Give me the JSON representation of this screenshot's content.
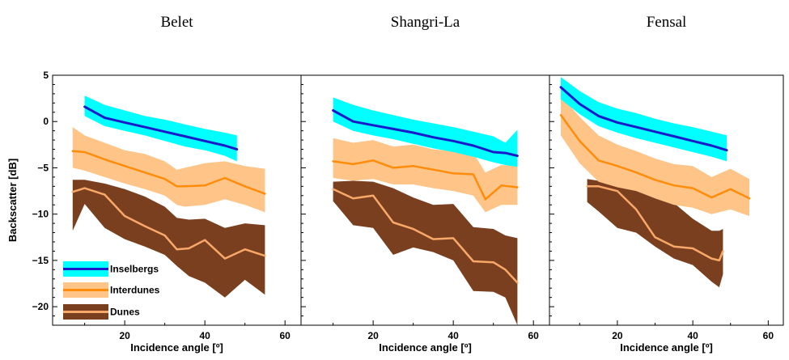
{
  "figure": {
    "ylabel": "Backscatter [dB]",
    "xlabel": "Incidence angle [º]",
    "legend": [
      "Inselbergs",
      "Interdunes",
      "Dunes"
    ],
    "colors": {
      "inselberg_band": "#00ffff",
      "inselberg_line": "#1a1acd",
      "interdune_band": "#ffc488",
      "interdune_line": "#ff8c0a",
      "dune_band": "#7a3f1f",
      "dune_line": "#f8a868"
    }
  },
  "chart_data": [
    {
      "type": "area",
      "title": "Belet",
      "xlabel": "Incidence angle [º]",
      "ylabel": "Backscatter [dB]",
      "xlim": [
        2,
        64
      ],
      "ylim": [
        -22,
        5
      ],
      "xticks": [
        20,
        40,
        60
      ],
      "yticks": [
        5,
        0,
        -5,
        -10,
        -15,
        -20
      ],
      "legend_position": "bottom-left",
      "series": [
        {
          "name": "Inselbergs",
          "x": [
            10,
            15,
            20,
            25,
            30,
            35,
            40,
            45,
            48
          ],
          "mean": [
            1.6,
            0.4,
            -0.1,
            -0.6,
            -1.1,
            -1.6,
            -2.1,
            -2.6,
            -3.0
          ],
          "lower": [
            0.6,
            -0.5,
            -1.0,
            -1.5,
            -2.1,
            -2.7,
            -3.1,
            -3.7,
            -4.3
          ],
          "upper": [
            2.8,
            1.8,
            1.2,
            0.6,
            0.2,
            -0.3,
            -0.8,
            -1.2,
            -1.5
          ]
        },
        {
          "name": "Interdunes",
          "x": [
            7,
            10,
            15,
            20,
            25,
            30,
            33,
            35,
            40,
            45,
            50,
            55
          ],
          "mean": [
            -3.2,
            -3.3,
            -4.1,
            -4.8,
            -5.5,
            -6.2,
            -7.0,
            -7.0,
            -6.9,
            -6.1,
            -7.0,
            -7.8
          ],
          "lower": [
            -5.0,
            -5.3,
            -6.0,
            -6.7,
            -7.3,
            -8.0,
            -9.0,
            -9.2,
            -9.0,
            -8.4,
            -9.0,
            -9.8
          ],
          "upper": [
            -0.6,
            -1.5,
            -2.3,
            -3.1,
            -3.5,
            -4.3,
            -5.2,
            -5.0,
            -4.5,
            -4.3,
            -4.8,
            -5.1
          ]
        },
        {
          "name": "Dunes",
          "x": [
            7,
            10,
            15,
            20,
            25,
            30,
            33,
            36,
            40,
            45,
            50,
            55
          ],
          "mean": [
            -7.6,
            -7.2,
            -7.9,
            -10.2,
            -11.3,
            -12.3,
            -13.8,
            -13.7,
            -12.8,
            -14.8,
            -13.8,
            -14.5
          ],
          "lower": [
            -11.8,
            -8.9,
            -11.5,
            -12.7,
            -13.5,
            -14.4,
            -15.6,
            -16.7,
            -17.4,
            -19.0,
            -17.1,
            -18.7
          ],
          "upper": [
            -6.3,
            -6.3,
            -6.7,
            -7.3,
            -8.1,
            -9.2,
            -10.4,
            -10.6,
            -10.5,
            -11.5,
            -11.0,
            -11.2
          ]
        }
      ]
    },
    {
      "type": "area",
      "title": "Shangri-La",
      "xlabel": "Incidence angle [º]",
      "ylabel": "",
      "xlim": [
        2,
        64
      ],
      "ylim": [
        -22,
        5
      ],
      "xticks": [
        20,
        40,
        60
      ],
      "yticks": [
        5,
        0,
        -5,
        -10,
        -15,
        -20
      ],
      "series": [
        {
          "name": "Inselbergs",
          "x": [
            10,
            15,
            20,
            25,
            30,
            35,
            40,
            45,
            50,
            53,
            56
          ],
          "mean": [
            1.2,
            0.0,
            -0.4,
            -0.8,
            -1.2,
            -1.7,
            -2.1,
            -2.6,
            -3.3,
            -3.4,
            -3.7
          ],
          "lower": [
            0.0,
            -1.0,
            -1.5,
            -1.9,
            -2.4,
            -2.9,
            -3.3,
            -3.8,
            -4.4,
            -4.7,
            -4.9
          ],
          "upper": [
            2.6,
            1.8,
            1.2,
            0.7,
            0.2,
            -0.2,
            -0.6,
            -1.1,
            -1.6,
            -2.3,
            -0.9
          ]
        },
        {
          "name": "Interdunes",
          "x": [
            10,
            15,
            20,
            25,
            30,
            35,
            40,
            45,
            48,
            52,
            56
          ],
          "mean": [
            -4.3,
            -4.6,
            -4.2,
            -5.0,
            -4.8,
            -5.2,
            -5.6,
            -5.7,
            -8.4,
            -6.9,
            -7.1
          ],
          "lower": [
            -6.1,
            -6.4,
            -6.2,
            -6.8,
            -6.8,
            -7.2,
            -7.5,
            -8.0,
            -9.8,
            -9.0,
            -9.0
          ],
          "upper": [
            -1.8,
            -2.3,
            -2.0,
            -2.7,
            -2.5,
            -3.0,
            -3.2,
            -3.4,
            -5.5,
            -4.7,
            -4.8
          ]
        },
        {
          "name": "Dunes",
          "x": [
            10,
            15,
            20,
            25,
            30,
            35,
            40,
            45,
            50,
            53,
            56
          ],
          "mean": [
            -7.3,
            -8.3,
            -8.0,
            -10.9,
            -11.6,
            -12.7,
            -12.6,
            -15.1,
            -15.2,
            -16.0,
            -17.4
          ],
          "lower": [
            -8.6,
            -11.2,
            -11.5,
            -14.4,
            -13.6,
            -14.1,
            -15.0,
            -18.3,
            -18.4,
            -19.0,
            -22.0
          ],
          "upper": [
            -6.5,
            -6.4,
            -6.5,
            -7.2,
            -8.2,
            -9.0,
            -8.9,
            -11.4,
            -11.6,
            -12.3,
            -12.6
          ]
        }
      ]
    },
    {
      "type": "area",
      "title": "Fensal",
      "xlabel": "Incidence angle [º]",
      "ylabel": "",
      "xlim": [
        2,
        64
      ],
      "ylim": [
        -22,
        5
      ],
      "xticks": [
        20,
        40,
        60
      ],
      "yticks": [
        5,
        0,
        -5,
        -10,
        -15,
        -20
      ],
      "series": [
        {
          "name": "Inselbergs",
          "x": [
            5,
            10,
            15,
            20,
            25,
            30,
            35,
            40,
            45,
            49
          ],
          "mean": [
            3.7,
            1.9,
            0.6,
            -0.1,
            -0.6,
            -1.1,
            -1.6,
            -2.1,
            -2.6,
            -3.1
          ],
          "lower": [
            2.4,
            0.8,
            -0.5,
            -1.2,
            -1.8,
            -2.3,
            -2.8,
            -3.3,
            -3.8,
            -4.3
          ],
          "upper": [
            4.8,
            3.3,
            2.1,
            1.4,
            0.9,
            0.3,
            -0.2,
            -0.6,
            -1.1,
            -1.5
          ]
        },
        {
          "name": "Interdunes",
          "x": [
            5,
            10,
            15,
            20,
            25,
            30,
            35,
            40,
            45,
            50,
            55
          ],
          "mean": [
            0.7,
            -2.1,
            -4.2,
            -4.8,
            -5.5,
            -6.3,
            -6.9,
            -7.2,
            -8.2,
            -7.3,
            -8.3
          ],
          "lower": [
            -1.5,
            -4.5,
            -6.5,
            -7.1,
            -7.5,
            -8.3,
            -9.0,
            -9.3,
            -10.0,
            -9.5,
            -10.2
          ],
          "upper": [
            2.8,
            0.5,
            -1.5,
            -2.5,
            -3.2,
            -4.0,
            -4.6,
            -4.8,
            -6.0,
            -5.1,
            -6.2
          ]
        },
        {
          "name": "Dunes",
          "x": [
            12,
            15,
            20,
            25,
            30,
            35,
            40,
            45,
            47,
            48
          ],
          "mean": [
            -7.0,
            -7.0,
            -7.5,
            -9.5,
            -12.5,
            -13.5,
            -13.7,
            -14.8,
            -15.0,
            -14.0
          ],
          "lower": [
            -8.7,
            -9.7,
            -11.5,
            -12.0,
            -13.5,
            -14.8,
            -15.5,
            -17.3,
            -17.9,
            -16.5
          ],
          "upper": [
            -6.2,
            -6.4,
            -6.6,
            -6.9,
            -7.3,
            -8.8,
            -10.5,
            -11.8,
            -11.8,
            -11.6
          ]
        }
      ]
    }
  ]
}
